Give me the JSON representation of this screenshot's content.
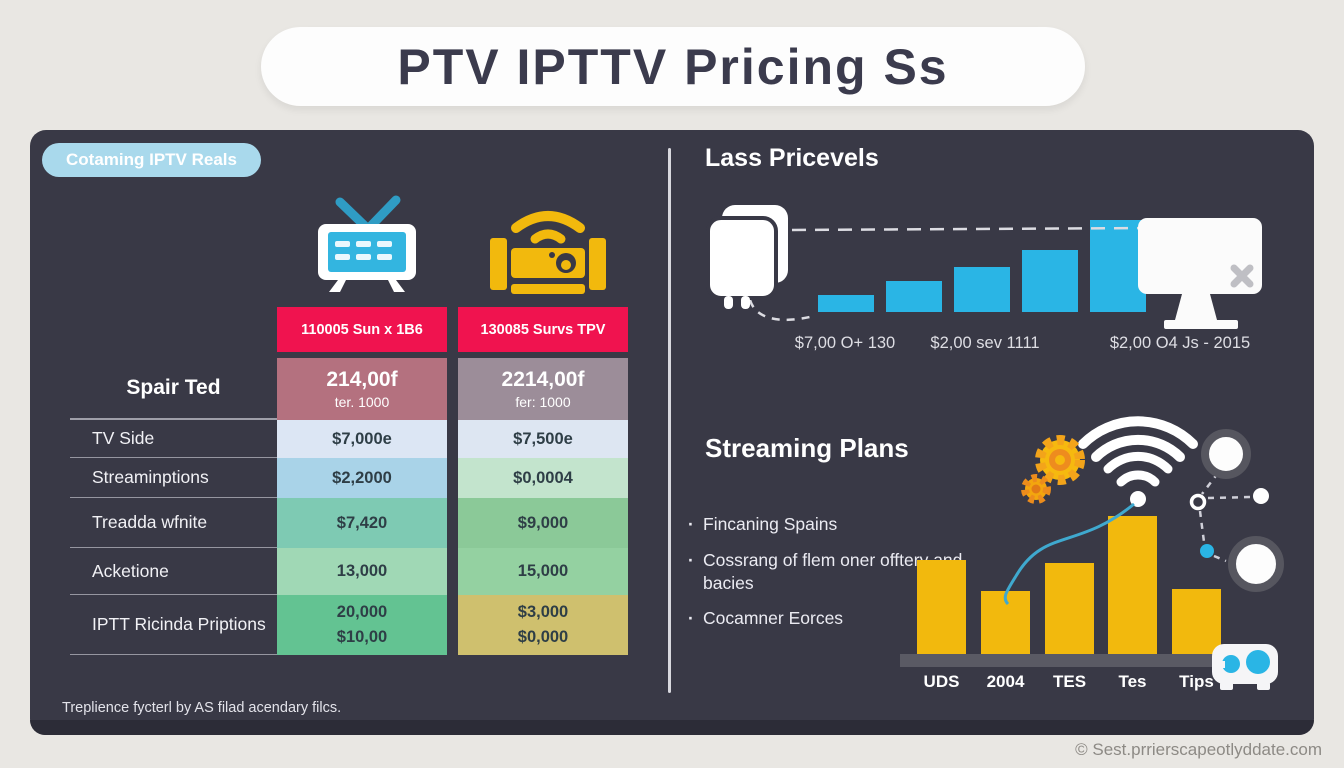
{
  "title": "PTV IPTTV Pricing Ss",
  "colors": {
    "page_background": "#e9e7e3",
    "panel": "#393946",
    "accent_pink": "#f0134f",
    "accent_cyan": "#2ab5e5",
    "accent_yellow": "#f2b90d",
    "badge_blue": "#a9d9ec",
    "summary_cell_left": "#b4717f",
    "summary_cell_right": "#9c8d99"
  },
  "left": {
    "badge": "Cotaming IPTV Reals",
    "icons": [
      "tv-icon",
      "set-top-box-icon"
    ],
    "column_headers": [
      "110005 Sun x 1B6",
      "130085 Survs TPV"
    ],
    "price_row": [
      {
        "price": "214,00f",
        "per": "ter. 1000"
      },
      {
        "price": "2214,00f",
        "per": "fer: 1000"
      }
    ],
    "row_header": "Spair Ted",
    "rows": [
      {
        "label": "TV Side",
        "cells": [
          {
            "lines": [
              "$7,000e"
            ],
            "bg": "#dce6f4"
          },
          {
            "lines": [
              "$7,500e"
            ],
            "bg": "#dde6f2"
          }
        ]
      },
      {
        "label": "Streaminptions",
        "cells": [
          {
            "lines": [
              "$2,2000"
            ],
            "bg": "#a9d3e8"
          },
          {
            "lines": [
              "$0,0004"
            ],
            "bg": "#c3e4cd"
          }
        ]
      },
      {
        "label": "Treadda wfnite",
        "cells": [
          {
            "lines": [
              "$7,420"
            ],
            "bg": "#7ecab3"
          },
          {
            "lines": [
              "$9,000"
            ],
            "bg": "#8bc998"
          }
        ]
      },
      {
        "label": "Acketione",
        "cells": [
          {
            "lines": [
              "13,000"
            ],
            "bg": "#a0d8b5"
          },
          {
            "lines": [
              "15,000"
            ],
            "bg": "#94d1a1"
          }
        ]
      },
      {
        "label": "IPTT Ricinda Priptions",
        "cells": [
          {
            "lines": [
              "20,000",
              "$10,00"
            ],
            "bg": "#63c392"
          },
          {
            "lines": [
              "$3,000",
              "$0,000"
            ],
            "bg": "#cfc06e"
          }
        ]
      }
    ]
  },
  "right": {
    "price_levels": {
      "heading": "Lass Pricevels",
      "price_labels": [
        "$7,00 O+ 130",
        "$2,00 sev 1111",
        "$2,00 O4 Js - 2015"
      ],
      "icons": [
        "stacked-device-icon",
        "monitor-icon"
      ]
    },
    "streaming": {
      "heading": "Streaming Plans",
      "bullets": [
        "Fincaning Spains",
        "Cossrang of flem oner offtery and bacies",
        "Cocamner Eorces"
      ],
      "icons": [
        "gears-icon",
        "wifi-icon",
        "network-nodes-icon",
        "projector-icon"
      ]
    }
  },
  "footer": {
    "footnote": "Treplience fycterl by AS filad acendary filcs.",
    "copyright": "© Sest.prrierscapeotlyddate.com"
  },
  "chart_data": [
    {
      "id": "price-levels-steps",
      "type": "bar",
      "title": "Lass Pricevels",
      "values": [
        17,
        31,
        45,
        62,
        92
      ],
      "unit": "relative height (no axis shown)",
      "bar_color": "#2ab5e5",
      "annotations": [
        "$7,00 O+ 130",
        "$2,00 sev 1111",
        "$2,00 O4 Js - 2015"
      ],
      "layout": "ascending step bars between a device icon and a monitor icon, dashed connector line above"
    },
    {
      "id": "streaming-plans-bars",
      "type": "bar",
      "title": "Streaming Plans",
      "categories": [
        "UDS",
        "2004",
        "TES",
        "Tes",
        "Tips"
      ],
      "values": [
        94,
        63,
        91,
        138,
        65
      ],
      "unit": "relative height (no axis shown)",
      "bar_color": "#f2b90d",
      "grid": false,
      "legend": false
    },
    {
      "id": "pricing-table",
      "type": "table",
      "columns": [
        "Spair Ted",
        "110005 Sun x 1B6",
        "130085 Survs TPV"
      ],
      "summary_row": [
        "",
        "214,00f ter. 1000",
        "2214,00f fer: 1000"
      ],
      "rows": [
        [
          "TV Side",
          "$7,000e",
          "$7,500e"
        ],
        [
          "Streaminptions",
          "$2,2000",
          "$0,0004"
        ],
        [
          "Treadda wfnite",
          "$7,420",
          "$9,000"
        ],
        [
          "Acketione",
          "13,000",
          "15,000"
        ],
        [
          "IPTT Ricinda Priptions",
          "20,000 $10,00",
          "$3,000 $0,000"
        ]
      ]
    }
  ]
}
